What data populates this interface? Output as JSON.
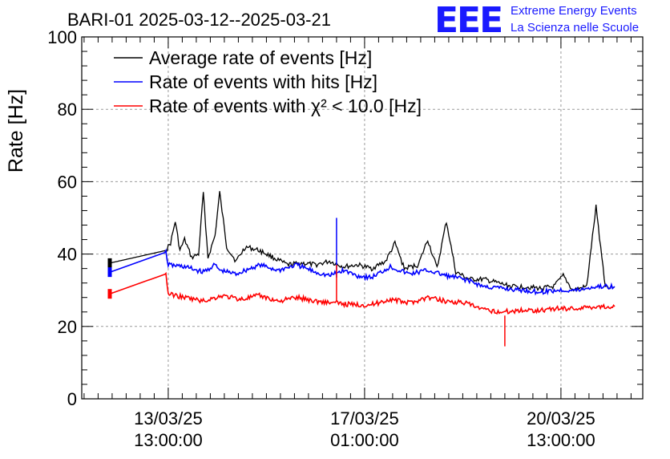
{
  "chart_data": {
    "type": "line",
    "title": "BARI-01 2025-03-12--2025-03-21",
    "ylabel": "Rate [Hz]",
    "xlabel": "",
    "ylim": [
      0,
      100
    ],
    "xlim": [
      "2025-03-12T00:00",
      "2025-03-22T00:00"
    ],
    "yticks": [
      0,
      20,
      40,
      60,
      80,
      100
    ],
    "xticks": [
      {
        "at": "2025-03-13T13:00",
        "line1": "13/03/25",
        "line2": "13:00:00"
      },
      {
        "at": "2025-03-17T01:00",
        "line1": "17/03/25",
        "line2": "01:00:00"
      },
      {
        "at": "2025-03-20T13:00",
        "line1": "20/03/25",
        "line2": "13:00:00"
      }
    ],
    "grid": true,
    "legend_position": "top-left",
    "series": [
      {
        "name": "Average rate of events [Hz]",
        "color": "#000000",
        "points": [
          [
            "2025-03-12T12:00",
            37.5
          ],
          [
            "2025-03-13T12:00",
            41.0
          ],
          [
            "2025-03-13T14:00",
            43.0
          ],
          [
            "2025-03-13T16:00",
            49.0
          ],
          [
            "2025-03-13T18:00",
            41.0
          ],
          [
            "2025-03-13T20:00",
            44.0
          ],
          [
            "2025-03-13T23:00",
            39.0
          ],
          [
            "2025-03-14T02:00",
            40.0
          ],
          [
            "2025-03-14T04:00",
            57.0
          ],
          [
            "2025-03-14T06:00",
            39.0
          ],
          [
            "2025-03-14T09:00",
            45.0
          ],
          [
            "2025-03-14T11:00",
            57.0
          ],
          [
            "2025-03-14T14:00",
            42.0
          ],
          [
            "2025-03-14T18:00",
            38.0
          ],
          [
            "2025-03-14T22:00",
            42.0
          ],
          [
            "2025-03-15T04:00",
            41.0
          ],
          [
            "2025-03-15T10:00",
            39.0
          ],
          [
            "2025-03-15T16:00",
            37.0
          ],
          [
            "2025-03-15T22:00",
            37.5
          ],
          [
            "2025-03-16T04:00",
            37.0
          ],
          [
            "2025-03-16T10:00",
            38.0
          ],
          [
            "2025-03-16T16:00",
            36.5
          ],
          [
            "2025-03-16T22:00",
            37.0
          ],
          [
            "2025-03-17T04:00",
            36.0
          ],
          [
            "2025-03-17T10:00",
            38.0
          ],
          [
            "2025-03-17T14:00",
            43.0
          ],
          [
            "2025-03-17T18:00",
            36.0
          ],
          [
            "2025-03-18T00:00",
            37.0
          ],
          [
            "2025-03-18T04:00",
            44.0
          ],
          [
            "2025-03-18T08:00",
            36.0
          ],
          [
            "2025-03-18T12:00",
            49.0
          ],
          [
            "2025-03-18T16:00",
            35.0
          ],
          [
            "2025-03-18T22:00",
            33.0
          ],
          [
            "2025-03-19T04:00",
            33.0
          ],
          [
            "2025-03-19T10:00",
            32.0
          ],
          [
            "2025-03-19T16:00",
            31.0
          ],
          [
            "2025-03-19T22:00",
            31.0
          ],
          [
            "2025-03-20T04:00",
            30.5
          ],
          [
            "2025-03-20T10:00",
            31.0
          ],
          [
            "2025-03-20T14:00",
            34.0
          ],
          [
            "2025-03-20T18:00",
            30.0
          ],
          [
            "2025-03-21T00:00",
            31.0
          ],
          [
            "2025-03-21T04:00",
            53.0
          ],
          [
            "2025-03-21T08:00",
            31.0
          ],
          [
            "2025-03-21T12:00",
            31.0
          ]
        ]
      },
      {
        "name": "Rate of events with hits [Hz]",
        "color": "#0000ff",
        "points": [
          [
            "2025-03-12T12:00",
            35.0
          ],
          [
            "2025-03-13T12:00",
            40.5
          ],
          [
            "2025-03-13T13:00",
            37.0
          ],
          [
            "2025-03-13T20:00",
            36.5
          ],
          [
            "2025-03-14T04:00",
            35.0
          ],
          [
            "2025-03-14T09:00",
            37.0
          ],
          [
            "2025-03-14T11:00",
            35.5
          ],
          [
            "2025-03-14T18:00",
            34.5
          ],
          [
            "2025-03-15T04:00",
            37.0
          ],
          [
            "2025-03-15T12:00",
            35.5
          ],
          [
            "2025-03-15T20:00",
            37.0
          ],
          [
            "2025-03-16T04:00",
            35.0
          ],
          [
            "2025-03-16T10:00",
            34.0
          ],
          [
            "2025-03-16T16:00",
            35.5
          ],
          [
            "2025-03-16T22:00",
            34.0
          ],
          [
            "2025-03-17T04:00",
            33.5
          ],
          [
            "2025-03-17T12:00",
            36.5
          ],
          [
            "2025-03-17T20:00",
            34.5
          ],
          [
            "2025-03-18T04:00",
            35.5
          ],
          [
            "2025-03-18T12:00",
            34.0
          ],
          [
            "2025-03-18T20:00",
            33.0
          ],
          [
            "2025-03-19T04:00",
            31.0
          ],
          [
            "2025-03-19T12:00",
            30.5
          ],
          [
            "2025-03-19T20:00",
            30.0
          ],
          [
            "2025-03-20T04:00",
            29.5
          ],
          [
            "2025-03-20T12:00",
            30.0
          ],
          [
            "2025-03-20T20:00",
            30.0
          ],
          [
            "2025-03-21T04:00",
            31.0
          ],
          [
            "2025-03-21T12:00",
            31.0
          ]
        ]
      },
      {
        "name": "Rate of events with χ² < 10.0 [Hz]",
        "color": "#ff0000",
        "points": [
          [
            "2025-03-12T12:00",
            29.0
          ],
          [
            "2025-03-13T12:00",
            34.5
          ],
          [
            "2025-03-13T13:00",
            29.0
          ],
          [
            "2025-03-13T20:00",
            28.0
          ],
          [
            "2025-03-14T04:00",
            27.0
          ],
          [
            "2025-03-14T12:00",
            28.5
          ],
          [
            "2025-03-14T20:00",
            27.5
          ],
          [
            "2025-03-15T04:00",
            28.5
          ],
          [
            "2025-03-15T12:00",
            27.0
          ],
          [
            "2025-03-15T20:00",
            28.0
          ],
          [
            "2025-03-16T04:00",
            27.0
          ],
          [
            "2025-03-16T12:00",
            26.5
          ],
          [
            "2025-03-16T20:00",
            26.0
          ],
          [
            "2025-03-17T04:00",
            26.0
          ],
          [
            "2025-03-17T12:00",
            27.5
          ],
          [
            "2025-03-17T20:00",
            26.5
          ],
          [
            "2025-03-18T04:00",
            28.0
          ],
          [
            "2025-03-18T12:00",
            27.0
          ],
          [
            "2025-03-18T20:00",
            26.5
          ],
          [
            "2025-03-19T04:00",
            24.5
          ],
          [
            "2025-03-19T12:00",
            24.0
          ],
          [
            "2025-03-19T20:00",
            24.5
          ],
          [
            "2025-03-20T04:00",
            24.5
          ],
          [
            "2025-03-20T12:00",
            25.0
          ],
          [
            "2025-03-20T20:00",
            25.0
          ],
          [
            "2025-03-21T04:00",
            25.5
          ],
          [
            "2025-03-21T12:00",
            25.5
          ]
        ]
      }
    ],
    "spikes": [
      {
        "series": 1,
        "at": "2025-03-16T13:00",
        "from": 33.5,
        "to": 50.0
      },
      {
        "series": 2,
        "at": "2025-03-16T13:00",
        "from": 27.0,
        "to": 37.0
      },
      {
        "series": 2,
        "at": "2025-03-19T13:00",
        "from": 23.0,
        "to": 14.5
      }
    ]
  },
  "logo": {
    "mark": "EEE",
    "line1": "Extreme Energy Events",
    "line2": "La Scienza nelle Scuole"
  }
}
